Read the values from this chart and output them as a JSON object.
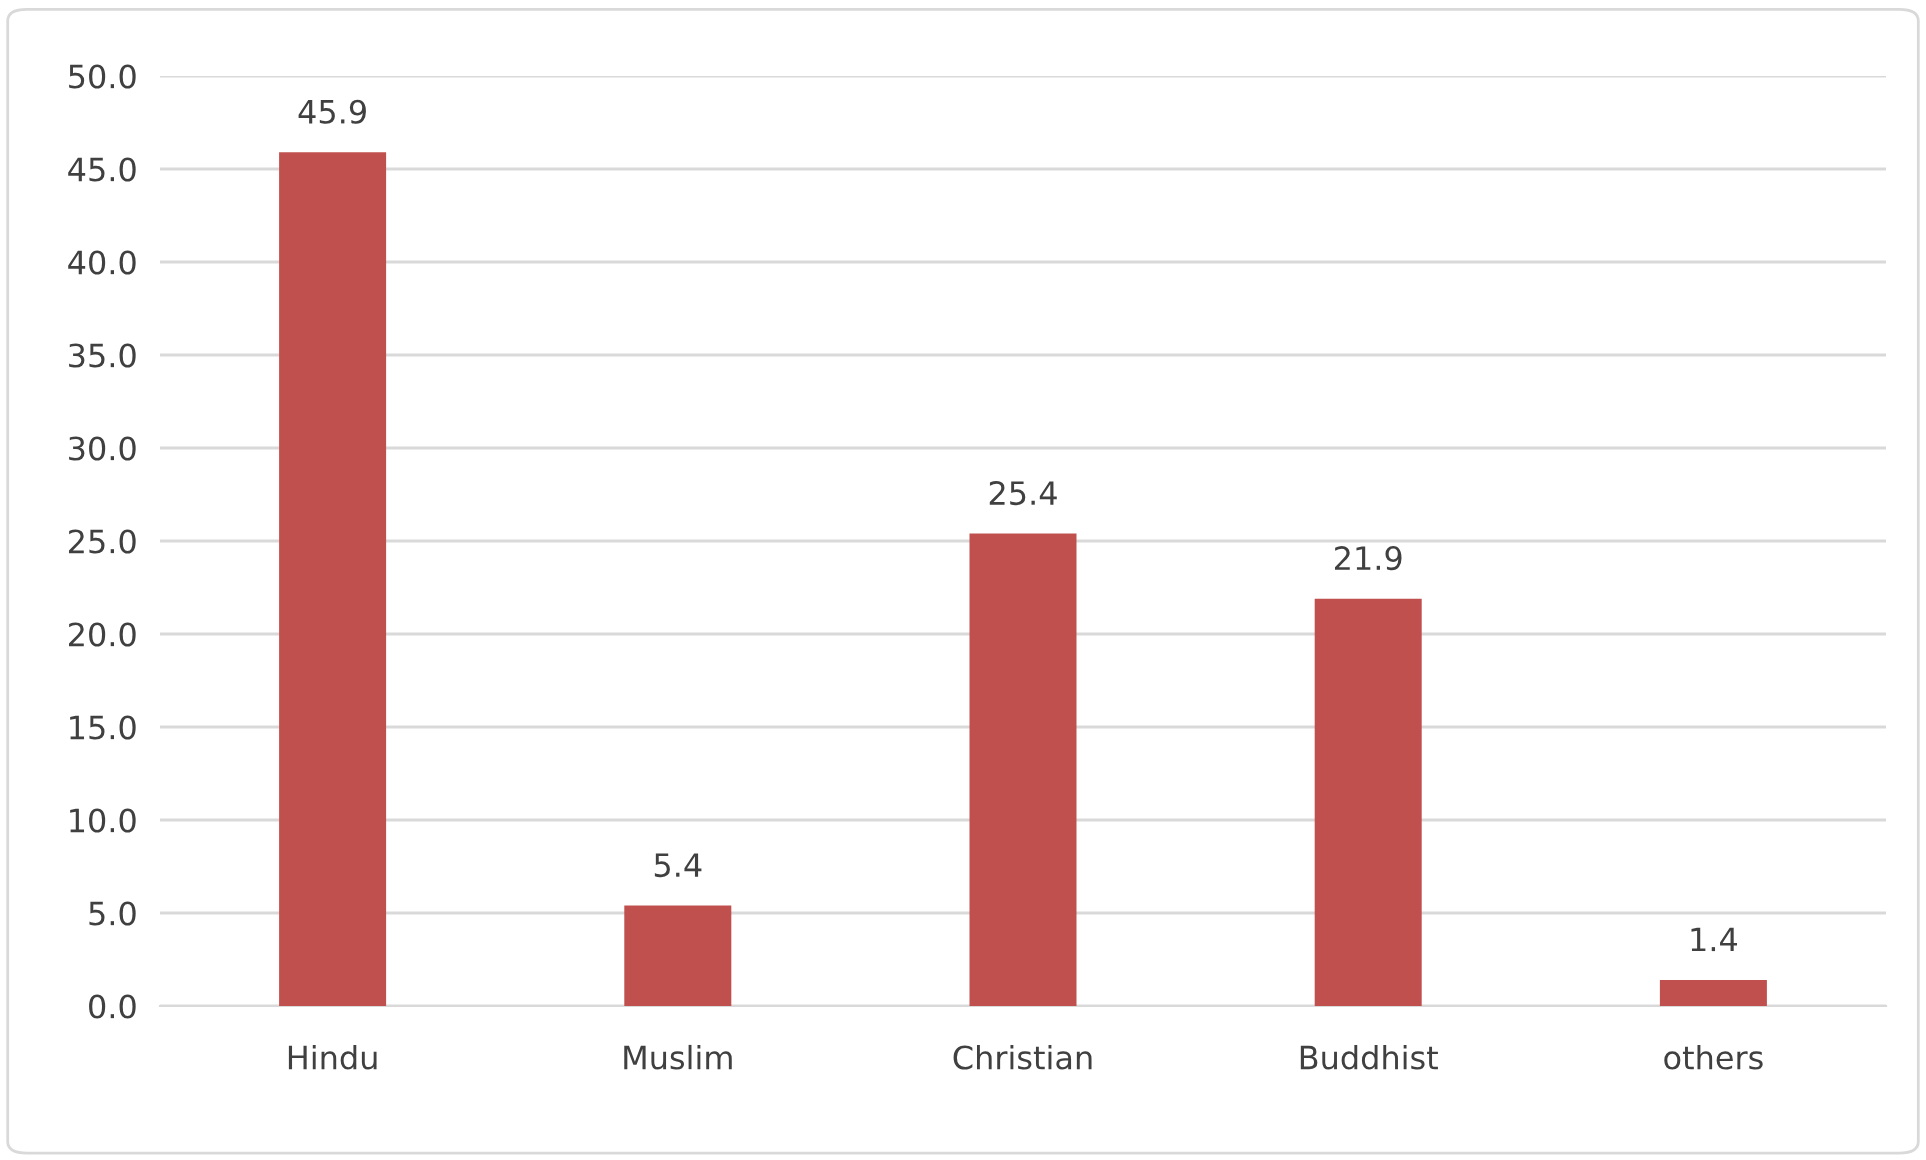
{
  "chart_data": {
    "type": "bar",
    "categories": [
      "Hindu",
      "Muslim",
      "Christian",
      "Buddhist",
      "others"
    ],
    "values": [
      45.9,
      5.4,
      25.4,
      21.9,
      1.4
    ],
    "color": "#c0504d",
    "ylim": [
      0,
      50
    ],
    "yticks": [
      {
        "value": 0,
        "label": "0.0"
      },
      {
        "value": 5,
        "label": "5.0"
      },
      {
        "value": 10,
        "label": "10.0"
      },
      {
        "value": 15,
        "label": "15.0"
      },
      {
        "value": 20,
        "label": "20.0"
      },
      {
        "value": 25,
        "label": "25.0"
      },
      {
        "value": 30,
        "label": "30.0"
      },
      {
        "value": 35,
        "label": "35.0"
      },
      {
        "value": 40,
        "label": "40.0"
      },
      {
        "value": 45,
        "label": "45.0"
      },
      {
        "value": 50,
        "label": "50.0"
      }
    ],
    "grid": "y",
    "data_labels": true,
    "legend": false
  }
}
